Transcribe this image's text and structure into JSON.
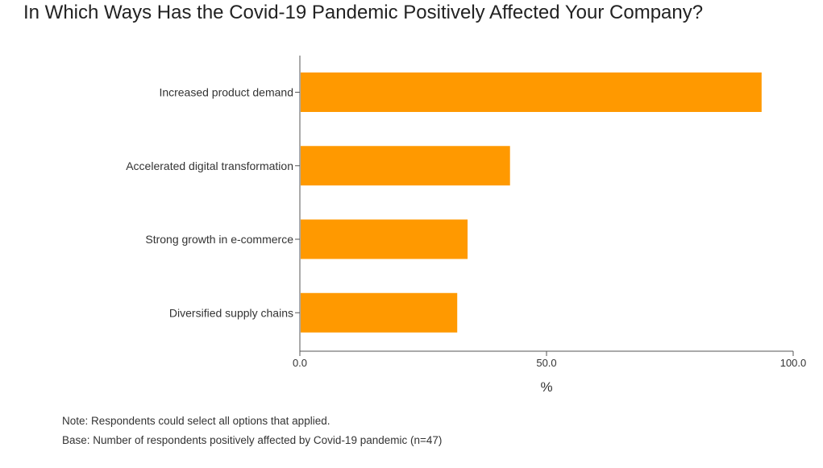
{
  "chart_data": {
    "type": "bar",
    "orientation": "horizontal",
    "title": "In Which Ways Has the Covid-19 Pandemic Positively Affected Your Company?",
    "categories": [
      "Increased product demand",
      "Accelerated digital transformation",
      "Strong growth in e-commerce",
      "Diversified supply chains"
    ],
    "values": [
      93.6,
      42.6,
      34.0,
      31.9
    ],
    "xlabel": "%",
    "ylabel": "",
    "xlim": [
      0,
      100
    ],
    "xticks": [
      "0.0",
      "50.0",
      "100.0"
    ],
    "bar_color": "#FF9900",
    "grid": false,
    "legend": "none"
  },
  "notes": {
    "note": "Note: Respondents could select all options that applied.",
    "base": "Base: Number of respondents positively affected by Covid-19 pandemic (n=47)"
  }
}
